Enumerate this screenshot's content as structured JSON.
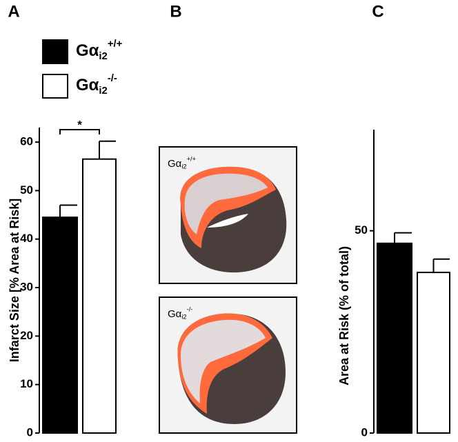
{
  "panel_labels": [
    "A",
    "B",
    "C"
  ],
  "legend": [
    {
      "base": "Gα",
      "sub": "i2",
      "sup": "+/+",
      "color": "#000000"
    },
    {
      "base": "Gα",
      "sub": "i2",
      "sup": "-/-",
      "color": "#ffffff"
    }
  ],
  "chart_data": [
    {
      "type": "bar",
      "y_label": "Infarct Size  [% Area at Risk]",
      "annotation": "*",
      "ylim": [
        0,
        63
      ],
      "yticks": [
        0,
        10,
        20,
        30,
        40,
        50,
        60
      ],
      "series": [
        {
          "color": "#000000",
          "values": [
            44.5
          ],
          "errors": [
            2.5
          ]
        },
        {
          "color": "#ffffff",
          "values": [
            56.5
          ],
          "errors": [
            3.7
          ]
        }
      ]
    },
    {
      "type": "bar",
      "y_label": "Area at Risk (% of total)",
      "ylim": [
        0,
        75
      ],
      "yticks": [
        0,
        50
      ],
      "series": [
        {
          "color": "#000000",
          "values": [
            46.9
          ],
          "errors": [
            2.6
          ]
        },
        {
          "color": "#ffffff",
          "values": [
            39.7
          ],
          "errors": [
            3.3
          ]
        }
      ]
    }
  ],
  "images": [
    {
      "label": {
        "base": "Gα",
        "sub": "i2",
        "sup": "+/+"
      }
    },
    {
      "label": {
        "base": "Gα",
        "sub": "i2",
        "sup": "-/-"
      }
    }
  ]
}
